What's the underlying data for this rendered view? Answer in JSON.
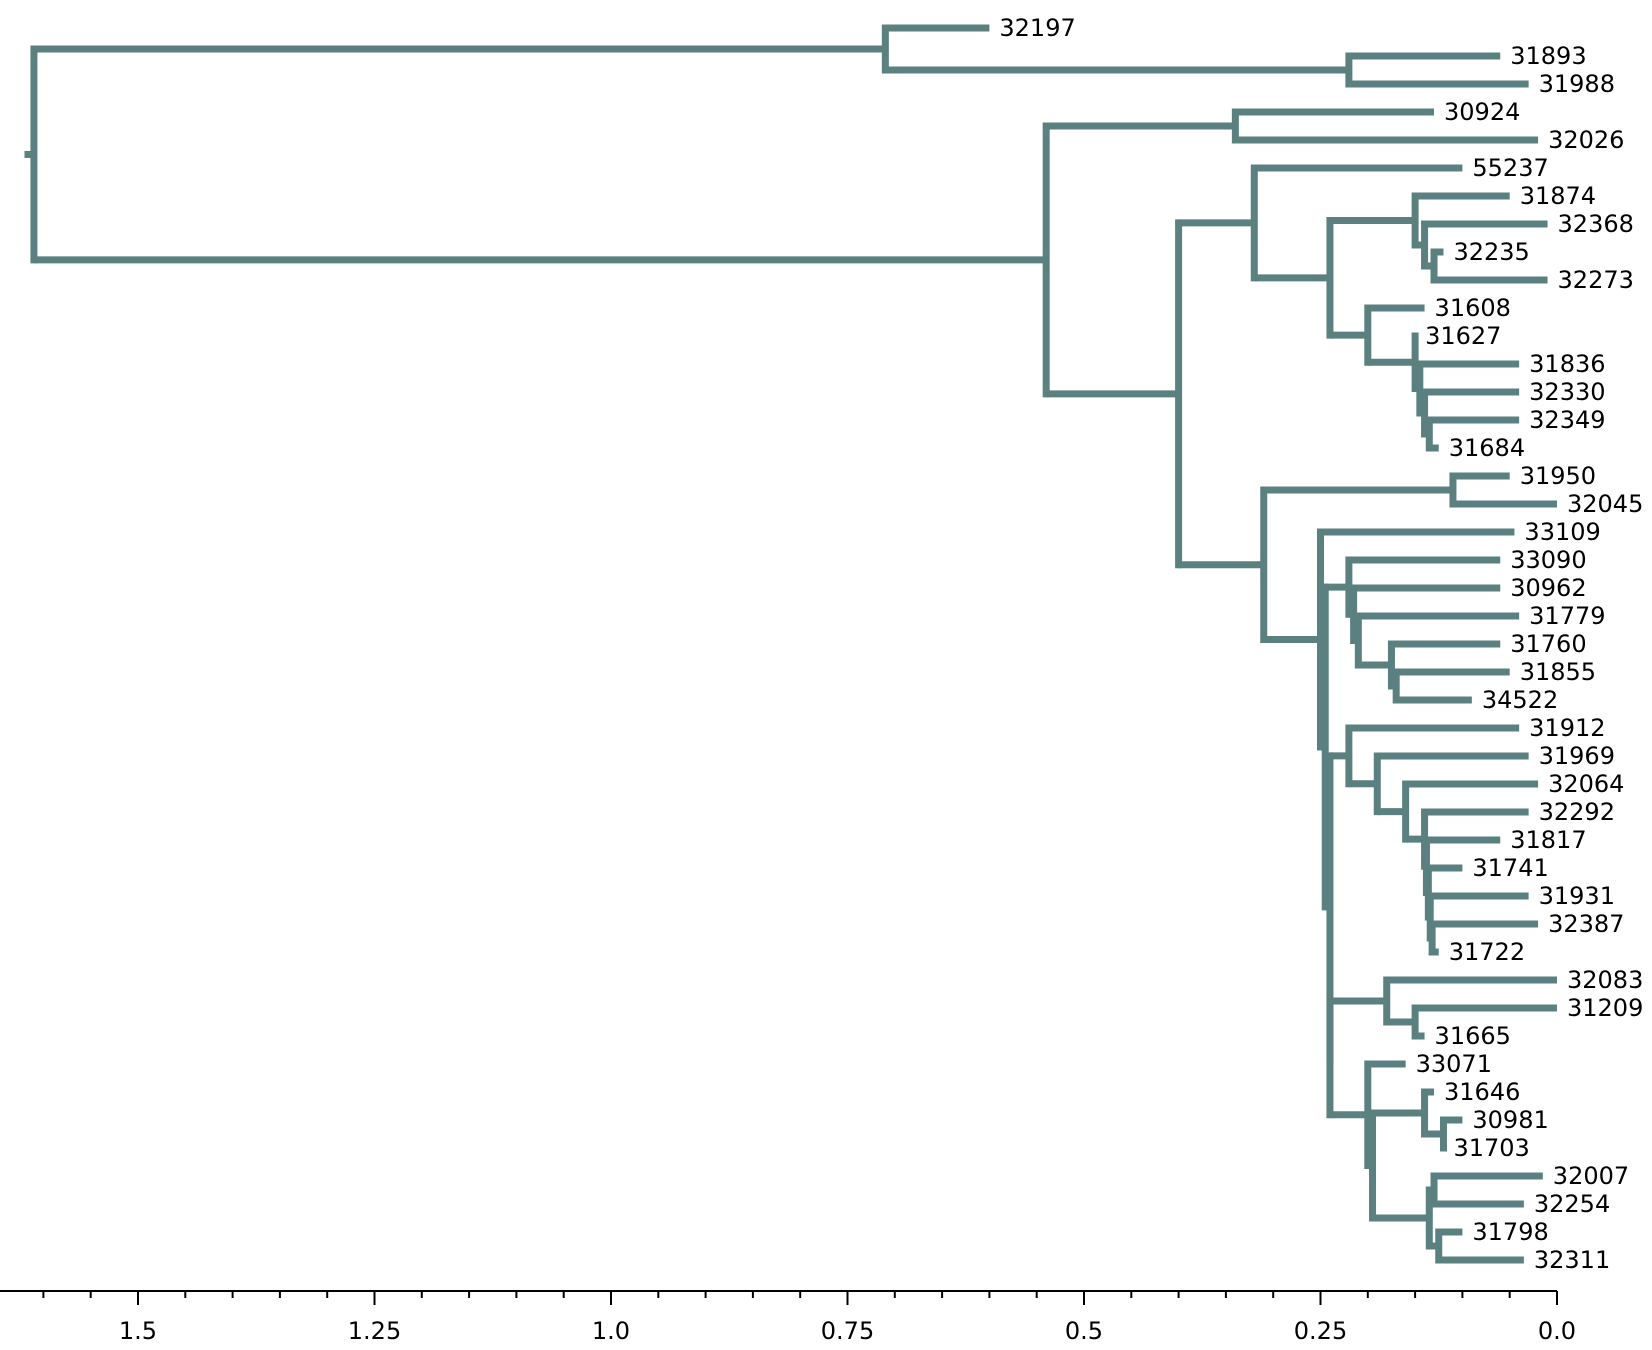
{
  "colors": {
    "branch": "#5a8080",
    "axis": "#000000"
  },
  "chart_data": {
    "type": "dendrogram",
    "axis": {
      "min": 0.0,
      "max": 1.6,
      "major_ticks": [
        1.5,
        1.25,
        1.0,
        0.75,
        0.5,
        0.25,
        0.0
      ],
      "major_labels": [
        "1.5",
        "1.25",
        "1.0",
        "0.75",
        "0.5",
        "0.25",
        "0.0"
      ],
      "minor_step": 0.05
    },
    "root_height": 1.62,
    "tree": {
      "h": 1.61,
      "children": [
        {
          "h": 0.71,
          "children": [
            {
              "name": "32197",
              "h": 0.6
            },
            {
              "h": 0.22,
              "children": [
                {
                  "name": "31893",
                  "h": 0.06
                },
                {
                  "name": "31988",
                  "h": 0.03
                }
              ]
            }
          ]
        },
        {
          "h": 0.54,
          "children": [
            {
              "h": 0.34,
              "children": [
                {
                  "name": "30924",
                  "h": 0.13
                },
                {
                  "name": "32026",
                  "h": 0.02
                }
              ]
            },
            {
              "h": 0.4,
              "children": [
                {
                  "h": 0.32,
                  "children": [
                    {
                      "name": "55237",
                      "h": 0.1
                    },
                    {
                      "h": 0.24,
                      "children": [
                        {
                          "h": 0.15,
                          "children": [
                            {
                              "name": "31874",
                              "h": 0.05
                            },
                            {
                              "h": 0.14,
                              "children": [
                                {
                                  "name": "32368",
                                  "h": 0.01
                                },
                                {
                                  "h": 0.13,
                                  "children": [
                                    {
                                      "name": "32235",
                                      "h": 0.12
                                    },
                                    {
                                      "name": "32273",
                                      "h": 0.01
                                    }
                                  ]
                                }
                              ]
                            }
                          ]
                        },
                        {
                          "h": 0.2,
                          "children": [
                            {
                              "name": "31608",
                              "h": 0.14
                            },
                            {
                              "h": 0.15,
                              "children": [
                                {
                                  "name": "31627",
                                  "h": 0.15
                                },
                                {
                                  "h": 0.145,
                                  "children": [
                                    {
                                      "name": "31836",
                                      "h": 0.04
                                    },
                                    {
                                      "h": 0.14,
                                      "children": [
                                        {
                                          "name": "32330",
                                          "h": 0.04
                                        },
                                        {
                                          "h": 0.135,
                                          "children": [
                                            {
                                              "name": "32349",
                                              "h": 0.04
                                            },
                                            {
                                              "name": "31684",
                                              "h": 0.125
                                            }
                                          ]
                                        }
                                      ]
                                    }
                                  ]
                                }
                              ]
                            }
                          ]
                        }
                      ]
                    }
                  ]
                },
                {
                  "h": 0.31,
                  "children": [
                    {
                      "h": 0.11,
                      "children": [
                        {
                          "name": "31950",
                          "h": 0.05
                        },
                        {
                          "name": "32045",
                          "h": 0.0
                        }
                      ]
                    },
                    {
                      "h": 0.25,
                      "children": [
                        {
                          "name": "33109",
                          "h": 0.045
                        },
                        {
                          "h": 0.245,
                          "children": [
                            {
                              "h": 0.22,
                              "children": [
                                {
                                  "name": "33090",
                                  "h": 0.06
                                },
                                {
                                  "h": 0.215,
                                  "children": [
                                    {
                                      "name": "30962",
                                      "h": 0.06
                                    },
                                    {
                                      "h": 0.21,
                                      "children": [
                                        {
                                          "name": "31779",
                                          "h": 0.04
                                        },
                                        {
                                          "h": 0.175,
                                          "children": [
                                            {
                                              "name": "31760",
                                              "h": 0.06
                                            },
                                            {
                                              "h": 0.17,
                                              "children": [
                                                {
                                                  "name": "31855",
                                                  "h": 0.05
                                                },
                                                {
                                                  "name": "34522",
                                                  "h": 0.09
                                                }
                                              ]
                                            }
                                          ]
                                        }
                                      ]
                                    }
                                  ]
                                }
                              ]
                            },
                            {
                              "h": 0.24,
                              "children": [
                                {
                                  "h": 0.22,
                                  "children": [
                                    {
                                      "name": "31912",
                                      "h": 0.04
                                    },
                                    {
                                      "h": 0.19,
                                      "children": [
                                        {
                                          "name": "31969",
                                          "h": 0.03
                                        },
                                        {
                                          "h": 0.16,
                                          "children": [
                                            {
                                              "name": "32064",
                                              "h": 0.02
                                            },
                                            {
                                              "h": 0.14,
                                              "children": [
                                                {
                                                  "name": "32292",
                                                  "h": 0.03
                                                },
                                                {
                                                  "h": 0.138,
                                                  "children": [
                                                    {
                                                      "name": "31817",
                                                      "h": 0.06
                                                    },
                                                    {
                                                      "h": 0.136,
                                                      "children": [
                                                        {
                                                          "name": "31741",
                                                          "h": 0.1
                                                        },
                                                        {
                                                          "h": 0.134,
                                                          "children": [
                                                            {
                                                              "name": "31931",
                                                              "h": 0.03
                                                            },
                                                            {
                                                              "h": 0.132,
                                                              "children": [
                                                                {
                                                                  "name": "32387",
                                                                  "h": 0.02
                                                                },
                                                                {
                                                                  "name": "31722",
                                                                  "h": 0.125
                                                                }
                                                              ]
                                                            }
                                                          ]
                                                        }
                                                      ]
                                                    }
                                                  ]
                                                }
                                              ]
                                            }
                                          ]
                                        }
                                      ]
                                    }
                                  ]
                                },
                                {
                                  "h": 0.24,
                                  "children": [
                                    {
                                      "h": 0.18,
                                      "children": [
                                        {
                                          "name": "32083",
                                          "h": 0.0
                                        },
                                        {
                                          "h": 0.15,
                                          "children": [
                                            {
                                              "name": "31209",
                                              "h": 0.0
                                            },
                                            {
                                              "name": "31665",
                                              "h": 0.14
                                            }
                                          ]
                                        }
                                      ]
                                    },
                                    {
                                      "h": 0.2,
                                      "children": [
                                        {
                                          "name": "33071",
                                          "h": 0.16
                                        },
                                        {
                                          "h": 0.195,
                                          "children": [
                                            {
                                              "h": 0.14,
                                              "children": [
                                                {
                                                  "name": "31646",
                                                  "h": 0.13
                                                },
                                                {
                                                  "h": 0.12,
                                                  "children": [
                                                    {
                                                      "name": "30981",
                                                      "h": 0.1
                                                    },
                                                    {
                                                      "name": "31703",
                                                      "h": 0.12
                                                    }
                                                  ]
                                                }
                                              ]
                                            },
                                            {
                                              "h": 0.135,
                                              "children": [
                                                {
                                                  "h": 0.13,
                                                  "children": [
                                                    {
                                                      "name": "32007",
                                                      "h": 0.015
                                                    },
                                                    {
                                                      "name": "32254",
                                                      "h": 0.035
                                                    }
                                                  ]
                                                },
                                                {
                                                  "h": 0.125,
                                                  "children": [
                                                    {
                                                      "name": "31798",
                                                      "h": 0.1
                                                    },
                                                    {
                                                      "name": "32311",
                                                      "h": 0.035
                                                    }
                                                  ]
                                                }
                                              ]
                                            }
                                          ]
                                        }
                                      ]
                                    }
                                  ]
                                }
                              ]
                            }
                          ]
                        }
                      ]
                    }
                  ]
                }
              ]
            }
          ]
        }
      ]
    }
  }
}
